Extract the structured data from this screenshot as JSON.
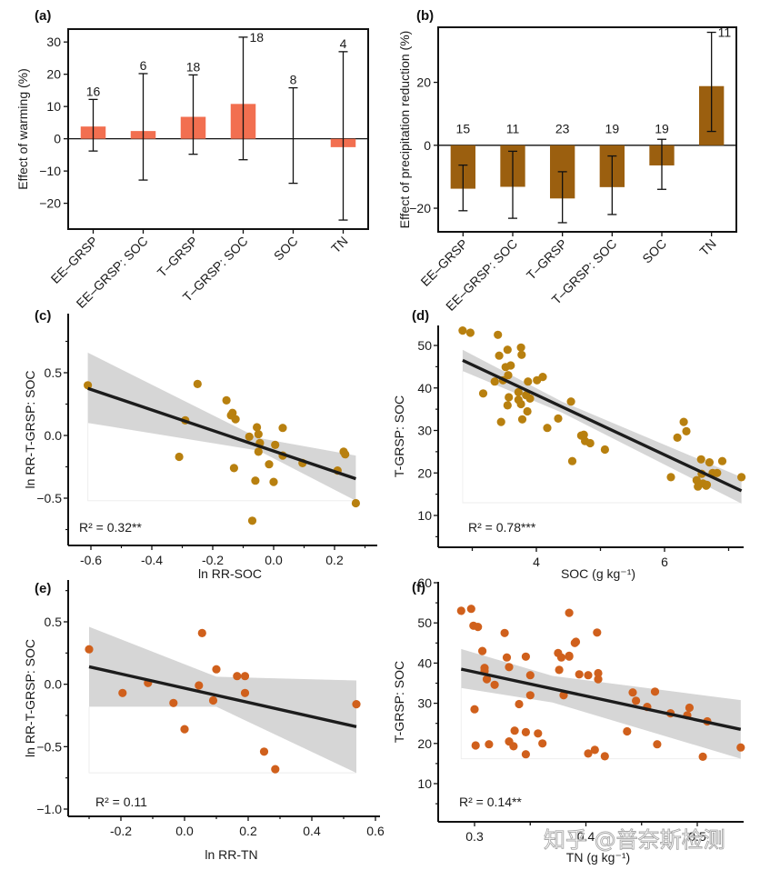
{
  "watermark": "知乎 @普奈斯检测",
  "colors": {
    "warming_bar": "#f26f50",
    "precip_bar": "#9b5f0f",
    "soc_point": "#b8800f",
    "tn_point": "#d0601c",
    "fit_line": "#1c1c1c",
    "ci_band": "#d6d6d6"
  },
  "chart_data": [
    {
      "id": "a",
      "panel_label": "(a)",
      "type": "bar",
      "ylabel": "Effect of warming (%)",
      "xlabel": "",
      "ylim": [
        -28,
        34
      ],
      "yticks": [
        -20,
        -10,
        0,
        10,
        20,
        30
      ],
      "categories": [
        "EE–GRSP",
        "EE–GRSP: SOC",
        "T–GRSP",
        "T–GRSP: SOC",
        "SOC",
        "TN"
      ],
      "values": [
        3.8,
        2.4,
        6.8,
        10.8,
        0,
        -2.6
      ],
      "ci_low": [
        -3.8,
        -12.8,
        -4.8,
        -6.5,
        -13.8,
        -25.2
      ],
      "ci_high": [
        12.2,
        20.2,
        19.8,
        31.5,
        15.8,
        27.0
      ],
      "n": [
        "16",
        "6",
        "18",
        "18",
        "8",
        "4"
      ]
    },
    {
      "id": "b",
      "panel_label": "(b)",
      "type": "bar",
      "ylabel": "Effect of precipitation reduction (%)",
      "xlabel": "",
      "ylim": [
        -27.5,
        37.5
      ],
      "yticks": [
        -20,
        0,
        20
      ],
      "categories": [
        "EE–GRSP",
        "EE–GRSP: SOC",
        "T–GRSP",
        "T–GRSP: SOC",
        "SOC",
        "TN"
      ],
      "values": [
        -13.8,
        -13.2,
        -16.9,
        -13.3,
        -6.4,
        18.8
      ],
      "ci_low": [
        -20.8,
        -23.2,
        -24.6,
        -22.0,
        -14.0,
        4.4
      ],
      "ci_high": [
        -6.3,
        -1.9,
        -8.4,
        -3.4,
        1.9,
        35.9
      ],
      "n": [
        "15",
        "11",
        "23",
        "19",
        "19",
        "11"
      ]
    },
    {
      "id": "c",
      "panel_label": "(c)",
      "type": "scatter",
      "xlabel": "ln RR-SOC",
      "ylabel": "ln RR-T-GRSP: SOC",
      "xlim": [
        -0.67,
        0.33
      ],
      "ylim": [
        -0.88,
        0.86
      ],
      "xticks": [
        -0.6,
        -0.4,
        -0.2,
        0.0,
        0.2
      ],
      "xtick_labels": [
        "-0.6",
        "-0.4",
        "-0.2",
        "0.0",
        "0.2"
      ],
      "yticks": [
        -0.5,
        0.0,
        0.5
      ],
      "ytick_labels": [
        "−0.5",
        "0.0",
        "0.5"
      ],
      "r2_label": "R² = 0.32**",
      "fit": {
        "x": [
          -0.61,
          0.27
        ],
        "y": [
          0.375,
          -0.345
        ]
      },
      "ci_band": {
        "x": [
          -0.61,
          -0.05,
          0.27
        ],
        "upper": [
          0.66,
          -0.02,
          -0.16
        ],
        "lower": [
          0.1,
          -0.12,
          -0.52
        ]
      },
      "points": [
        [
          -0.61,
          0.4
        ],
        [
          -0.29,
          0.12
        ],
        [
          -0.31,
          -0.17
        ],
        [
          -0.25,
          0.41
        ],
        [
          -0.155,
          0.28
        ],
        [
          -0.14,
          0.16
        ],
        [
          -0.135,
          0.18
        ],
        [
          -0.125,
          0.13
        ],
        [
          -0.13,
          -0.26
        ],
        [
          -0.08,
          -0.01
        ],
        [
          -0.055,
          0.065
        ],
        [
          -0.05,
          0.01
        ],
        [
          -0.045,
          -0.06
        ],
        [
          -0.05,
          -0.13
        ],
        [
          -0.06,
          -0.36
        ],
        [
          -0.07,
          -0.68
        ],
        [
          0.0,
          -0.37
        ],
        [
          0.005,
          -0.075
        ],
        [
          -0.015,
          -0.23
        ],
        [
          0.03,
          0.06
        ],
        [
          0.03,
          -0.16
        ],
        [
          0.095,
          -0.22
        ],
        [
          0.21,
          -0.28
        ],
        [
          0.23,
          -0.13
        ],
        [
          0.235,
          -0.15
        ],
        [
          0.27,
          -0.54
        ]
      ]
    },
    {
      "id": "d",
      "panel_label": "(d)",
      "type": "scatter",
      "xlabel": "SOC (g kg⁻¹)",
      "ylabel": "T-GRSP: SOC",
      "xlim": [
        2.5,
        7.25
      ],
      "ylim": [
        3,
        55
      ],
      "xticks": [
        3,
        4,
        5,
        6,
        7
      ],
      "xtick_labels": [
        "",
        "4",
        "",
        "6",
        ""
      ],
      "yticks": [
        10,
        20,
        30,
        40,
        50
      ],
      "ytick_labels": [
        "10",
        "20",
        "30",
        "40",
        "50"
      ],
      "r2_label": "R² = 0.78***",
      "fit": {
        "x": [
          2.85,
          7.2
        ],
        "y": [
          46.5,
          15.8
        ]
      },
      "ci_band": {
        "x": [
          2.85,
          4.4,
          7.2
        ],
        "upper": [
          49.0,
          36.8,
          19.0
        ],
        "lower": [
          44.0,
          34.2,
          12.8
        ]
      },
      "points": [
        [
          2.85,
          53.5
        ],
        [
          2.97,
          53.0
        ],
        [
          3.4,
          52.5
        ],
        [
          3.76,
          49.5
        ],
        [
          3.55,
          49.0
        ],
        [
          3.77,
          47.8
        ],
        [
          3.42,
          47.6
        ],
        [
          3.6,
          45.3
        ],
        [
          3.52,
          44.9
        ],
        [
          3.56,
          43.0
        ],
        [
          3.35,
          41.5
        ],
        [
          3.48,
          41.8
        ],
        [
          3.87,
          41.5
        ],
        [
          4.01,
          41.8
        ],
        [
          4.1,
          42.6
        ],
        [
          3.17,
          38.7
        ],
        [
          3.72,
          39.0
        ],
        [
          3.84,
          38.3
        ],
        [
          3.57,
          37.8
        ],
        [
          3.9,
          37.5
        ],
        [
          3.72,
          37.2
        ],
        [
          3.76,
          36.2
        ],
        [
          3.55,
          35.9
        ],
        [
          3.86,
          34.5
        ],
        [
          3.78,
          32.6
        ],
        [
          3.45,
          32.0
        ],
        [
          4.34,
          32.8
        ],
        [
          4.17,
          30.6
        ],
        [
          4.54,
          36.8
        ],
        [
          4.7,
          28.8
        ],
        [
          4.74,
          29.0
        ],
        [
          4.76,
          27.5
        ],
        [
          4.84,
          27.0
        ],
        [
          5.07,
          25.5
        ],
        [
          4.56,
          22.8
        ],
        [
          6.1,
          19.0
        ],
        [
          6.2,
          28.3
        ],
        [
          6.3,
          32.0
        ],
        [
          6.34,
          29.8
        ],
        [
          6.5,
          18.3
        ],
        [
          6.52,
          16.8
        ],
        [
          6.57,
          23.2
        ],
        [
          6.58,
          19.8
        ],
        [
          6.6,
          17.5
        ],
        [
          6.65,
          17.0
        ],
        [
          6.7,
          22.5
        ],
        [
          6.75,
          20.0
        ],
        [
          6.82,
          20.0
        ],
        [
          6.9,
          22.8
        ],
        [
          7.2,
          19.0
        ],
        [
          6.66,
          17.2
        ]
      ]
    },
    {
      "id": "e",
      "panel_label": "(e)",
      "type": "scatter",
      "xlabel": "ln RR-TN",
      "ylabel": "ln RR-T-GRSP: SOC",
      "xlim": [
        -0.36,
        0.6
      ],
      "ylim": [
        -1.07,
        0.84
      ],
      "xticks": [
        -0.2,
        0.0,
        0.2,
        0.4,
        0.6
      ],
      "xtick_labels": [
        "-0.2",
        "0.0",
        "0.2",
        "0.4",
        "0.6"
      ],
      "yticks": [
        -1.0,
        -0.5,
        0.0,
        0.5
      ],
      "ytick_labels": [
        "−1.0",
        "−0.5",
        "0.0",
        "0.5"
      ],
      "r2_label": "R² = 0.11",
      "fit": {
        "x": [
          -0.3,
          0.54
        ],
        "y": [
          0.14,
          -0.34
        ]
      },
      "ci_band": {
        "x": [
          -0.3,
          0.1,
          0.54
        ],
        "upper": [
          0.46,
          0.06,
          0.03
        ],
        "lower": [
          -0.18,
          -0.18,
          -0.71
        ]
      },
      "points": [
        [
          -0.3,
          0.28
        ],
        [
          -0.195,
          -0.07
        ],
        [
          -0.115,
          0.01
        ],
        [
          -0.035,
          -0.15
        ],
        [
          0.0,
          -0.36
        ],
        [
          0.045,
          -0.01
        ],
        [
          0.055,
          0.41
        ],
        [
          0.09,
          -0.13
        ],
        [
          0.1,
          0.12
        ],
        [
          0.165,
          0.065
        ],
        [
          0.19,
          0.065
        ],
        [
          0.19,
          -0.07
        ],
        [
          0.25,
          -0.54
        ],
        [
          0.285,
          -0.68
        ],
        [
          0.54,
          -0.16
        ]
      ]
    },
    {
      "id": "f",
      "panel_label": "(f)",
      "type": "scatter",
      "xlabel": "TN (g kg⁻¹)",
      "ylabel": "T-GRSP: SOC",
      "xlim": [
        0.267,
        0.541
      ],
      "ylim": [
        0,
        61
      ],
      "xticks": [
        0.3,
        0.35,
        0.4,
        0.45,
        0.5
      ],
      "xtick_labels": [
        "0.3",
        "",
        "0.4",
        "",
        "0.5"
      ],
      "yticks": [
        10,
        20,
        30,
        40,
        50,
        60
      ],
      "ytick_labels": [
        "10",
        "20",
        "30",
        "40",
        "50",
        "60"
      ],
      "r2_label": "R² = 0.14**",
      "fit": {
        "x": [
          0.288,
          0.539
        ],
        "y": [
          38.5,
          23.5
        ]
      },
      "ci_band": {
        "x": [
          0.288,
          0.37,
          0.539
        ],
        "upper": [
          43.5,
          36.8,
          30.8
        ],
        "lower": [
          33.8,
          30.2,
          16.2
        ]
      },
      "points": [
        [
          0.288,
          53.0
        ],
        [
          0.297,
          53.5
        ],
        [
          0.299,
          49.3
        ],
        [
          0.303,
          49.0
        ],
        [
          0.3,
          28.5
        ],
        [
          0.301,
          19.5
        ],
        [
          0.307,
          43.0
        ],
        [
          0.309,
          38.8
        ],
        [
          0.309,
          38.0
        ],
        [
          0.311,
          36.0
        ],
        [
          0.313,
          19.8
        ],
        [
          0.318,
          34.6
        ],
        [
          0.327,
          47.5
        ],
        [
          0.329,
          41.4
        ],
        [
          0.331,
          39.0
        ],
        [
          0.331,
          20.5
        ],
        [
          0.335,
          19.3
        ],
        [
          0.336,
          23.2
        ],
        [
          0.34,
          29.8
        ],
        [
          0.346,
          41.6
        ],
        [
          0.346,
          22.8
        ],
        [
          0.346,
          17.3
        ],
        [
          0.35,
          37.0
        ],
        [
          0.35,
          32.0
        ],
        [
          0.357,
          22.5
        ],
        [
          0.361,
          20.0
        ],
        [
          0.375,
          42.5
        ],
        [
          0.376,
          38.3
        ],
        [
          0.378,
          41.4
        ],
        [
          0.38,
          32.0
        ],
        [
          0.385,
          52.5
        ],
        [
          0.385,
          41.8
        ],
        [
          0.39,
          45.0
        ],
        [
          0.391,
          45.3
        ],
        [
          0.394,
          37.2
        ],
        [
          0.402,
          37.0
        ],
        [
          0.402,
          17.5
        ],
        [
          0.408,
          18.4
        ],
        [
          0.41,
          47.6
        ],
        [
          0.411,
          37.5
        ],
        [
          0.411,
          36.0
        ],
        [
          0.417,
          16.8
        ],
        [
          0.437,
          23.0
        ],
        [
          0.442,
          32.7
        ],
        [
          0.445,
          30.6
        ],
        [
          0.455,
          29.1
        ],
        [
          0.462,
          32.9
        ],
        [
          0.464,
          19.8
        ],
        [
          0.476,
          27.5
        ],
        [
          0.491,
          27.0
        ],
        [
          0.493,
          28.9
        ],
        [
          0.505,
          16.7
        ],
        [
          0.509,
          25.5
        ],
        [
          0.539,
          19.0
        ],
        [
          0.385,
          41.6
        ]
      ]
    }
  ]
}
